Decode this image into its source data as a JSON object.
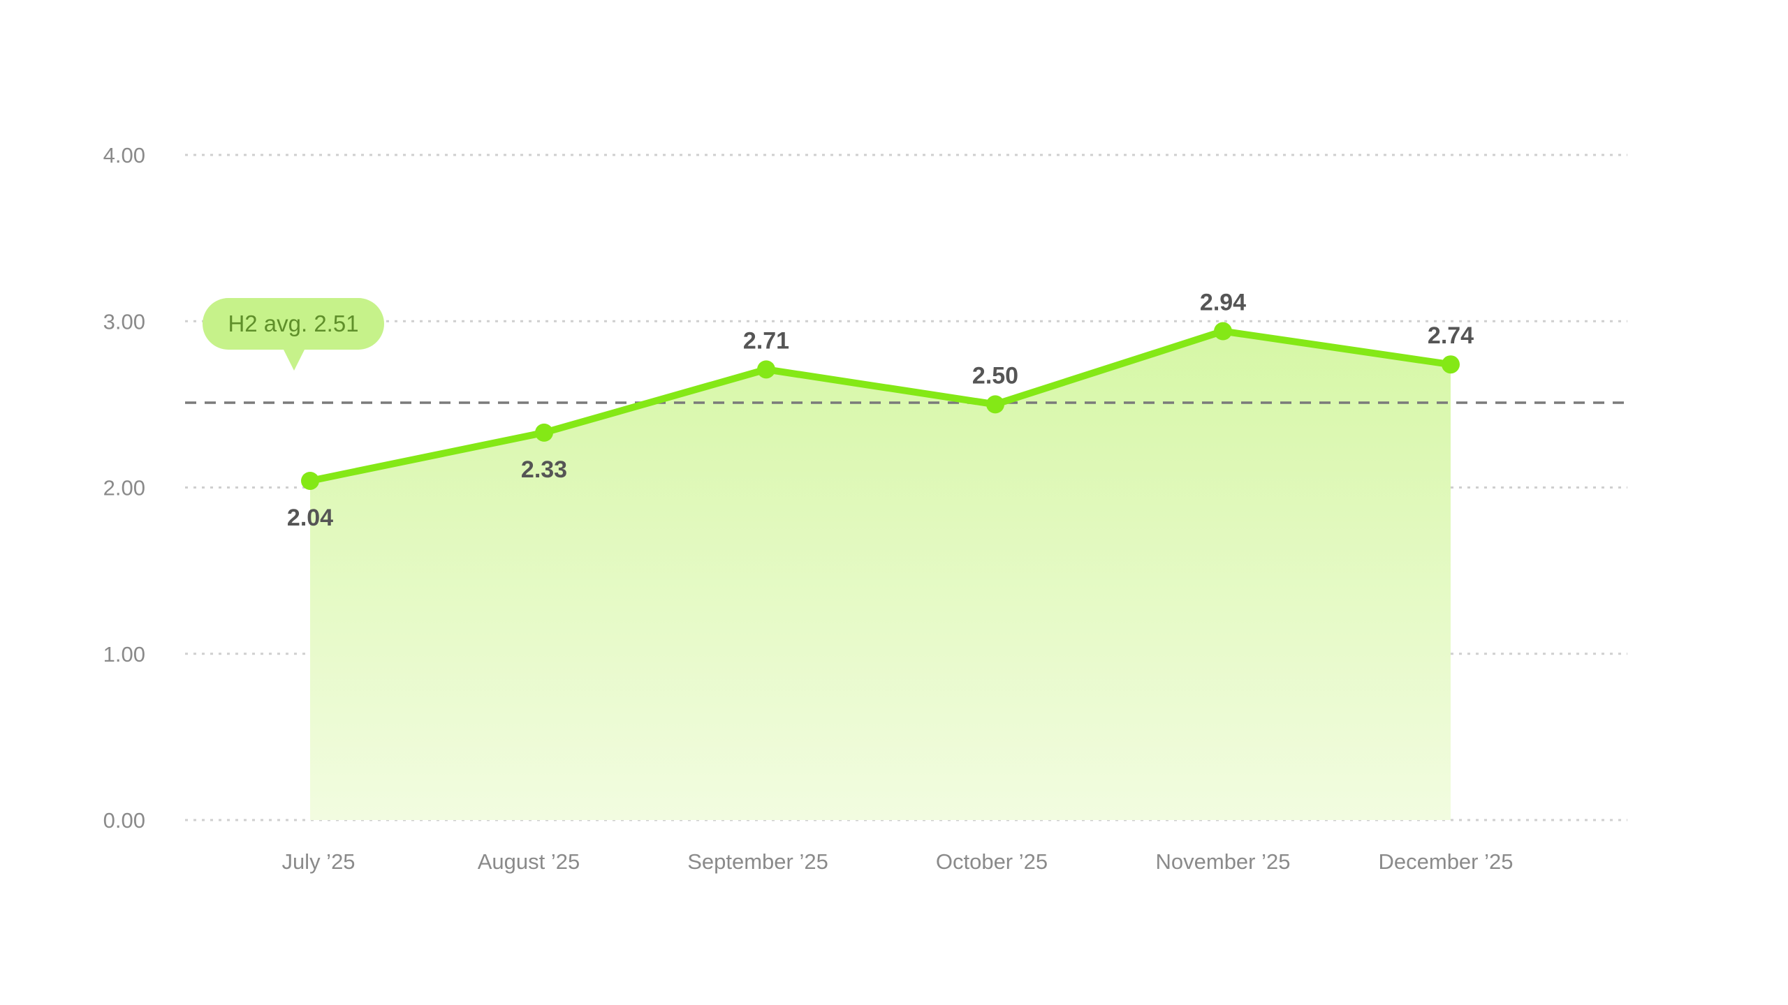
{
  "chart_data": {
    "type": "area",
    "categories": [
      "July ’25",
      "August ’25",
      "September ’25",
      "October ’25",
      "November ’25",
      "December ’25"
    ],
    "series": [
      {
        "values": [
          2.04,
          2.33,
          2.71,
          2.5,
          2.94,
          2.74
        ],
        "labels": [
          "2.04",
          "2.33",
          "2.71",
          "2.50",
          "2.94",
          "2.74"
        ]
      }
    ],
    "yticks": [
      "0.00",
      "1.00",
      "2.00",
      "3.00",
      "4.00"
    ],
    "ylim": [
      0,
      4
    ],
    "grid": true,
    "reference_line": {
      "value": 2.51,
      "label": "H2 avg. 2.51"
    },
    "colors": {
      "line": "#84e816",
      "marker": "#84e816",
      "fill_top": "#d6f7a6",
      "fill_bottom": "#f2fce0",
      "grid": "#cfcfcf",
      "reference_line": "#7a7a7a",
      "avg_badge": "#c6f28a",
      "avg_text": "#5f8f2a",
      "tick_text": "#8a8a8a",
      "value_text": "#555555"
    }
  }
}
